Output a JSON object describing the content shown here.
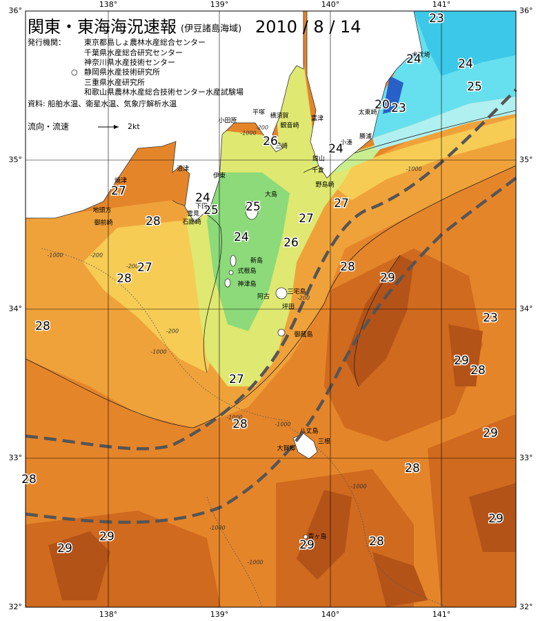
{
  "header": {
    "title": "関東・東海海況速報",
    "subtitle": "(伊豆諸島海域)",
    "date": "2010 / 8 / 14"
  },
  "agencies": {
    "label": "発行機関：",
    "marker": "○",
    "items": [
      "東京都島しょ農林水産総合センター",
      "千葉県水産総合研究センター",
      "神奈川県水産技術センター",
      "静岡県水産技術研究所",
      "三重県水産研究所",
      "和歌山県農林水産総合技術センター水産試験場"
    ]
  },
  "sources": "資料: 船舶水温、衛星水温、気象庁解析水温",
  "current_legend": {
    "label": "流向・流速",
    "speed": "2kt"
  },
  "lon_ticks": [
    {
      "value": 138,
      "label": "138°"
    },
    {
      "value": 139,
      "label": "139°"
    },
    {
      "value": 140,
      "label": "140°"
    },
    {
      "value": 141,
      "label": "141°"
    }
  ],
  "lat_ticks": [
    {
      "value": 36,
      "label": "36°"
    },
    {
      "value": 35,
      "label": "35°"
    },
    {
      "value": 34,
      "label": "34°"
    },
    {
      "value": 33,
      "label": "33°"
    },
    {
      "value": 32,
      "label": "32°"
    }
  ],
  "place_names": [
    "小田原",
    "平塚",
    "横須賀",
    "観音崎",
    "三崎",
    "富津",
    "小湊",
    "勝浦",
    "館山",
    "千倉",
    "野島崎",
    "太東崎",
    "犬吠埼",
    "伊東",
    "焼津",
    "沼津",
    "地頭方",
    "御前崎",
    "下田",
    "雲見",
    "石廊崎",
    "大島",
    "新島",
    "式根島",
    "神津島",
    "三宅島",
    "坪田",
    "阿古",
    "御蔵島",
    "八丈島",
    "三根",
    "大賀郷",
    "青ヶ島"
  ],
  "temperature_labels": [
    23,
    24,
    24,
    25,
    20,
    23,
    26,
    24,
    27,
    24,
    25,
    25,
    28,
    27,
    24,
    27,
    26,
    27,
    28,
    28,
    29,
    23,
    28,
    29,
    28,
    27,
    28,
    29,
    28,
    28,
    29,
    29,
    29,
    29,
    28
  ],
  "depth_labels": [
    "-200",
    "-1000"
  ]
}
